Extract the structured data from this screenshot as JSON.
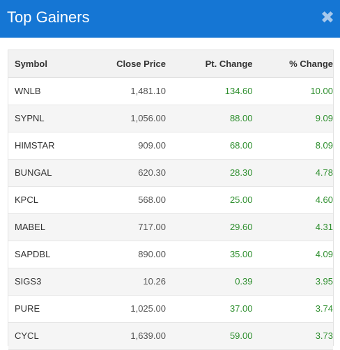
{
  "modal": {
    "title": "Top Gainers",
    "close_label": "✖"
  },
  "table": {
    "headers": {
      "symbol": "Symbol",
      "close_price": "Close Price",
      "pt_change": "Pt. Change",
      "pct_change": "% Change"
    },
    "rows": [
      {
        "symbol": "WNLB",
        "close_price": "1,481.10",
        "pt_change": "134.60",
        "pct_change": "10.00"
      },
      {
        "symbol": "SYPNL",
        "close_price": "1,056.00",
        "pt_change": "88.00",
        "pct_change": "9.09"
      },
      {
        "symbol": "HIMSTAR",
        "close_price": "909.00",
        "pt_change": "68.00",
        "pct_change": "8.09"
      },
      {
        "symbol": "BUNGAL",
        "close_price": "620.30",
        "pt_change": "28.30",
        "pct_change": "4.78"
      },
      {
        "symbol": "KPCL",
        "close_price": "568.00",
        "pt_change": "25.00",
        "pct_change": "4.60"
      },
      {
        "symbol": "MABEL",
        "close_price": "717.00",
        "pt_change": "29.60",
        "pct_change": "4.31"
      },
      {
        "symbol": "SAPDBL",
        "close_price": "890.00",
        "pt_change": "35.00",
        "pct_change": "4.09"
      },
      {
        "symbol": "SIGS3",
        "close_price": "10.26",
        "pt_change": "0.39",
        "pct_change": "3.95"
      },
      {
        "symbol": "PURE",
        "close_price": "1,025.00",
        "pt_change": "37.00",
        "pct_change": "3.74"
      },
      {
        "symbol": "CYCL",
        "close_price": "1,639.00",
        "pt_change": "59.00",
        "pct_change": "3.73"
      }
    ]
  },
  "colors": {
    "header_bg": "#1576d4",
    "gain": "#2f8f2f",
    "header_row_bg": "#f2f2f2"
  }
}
